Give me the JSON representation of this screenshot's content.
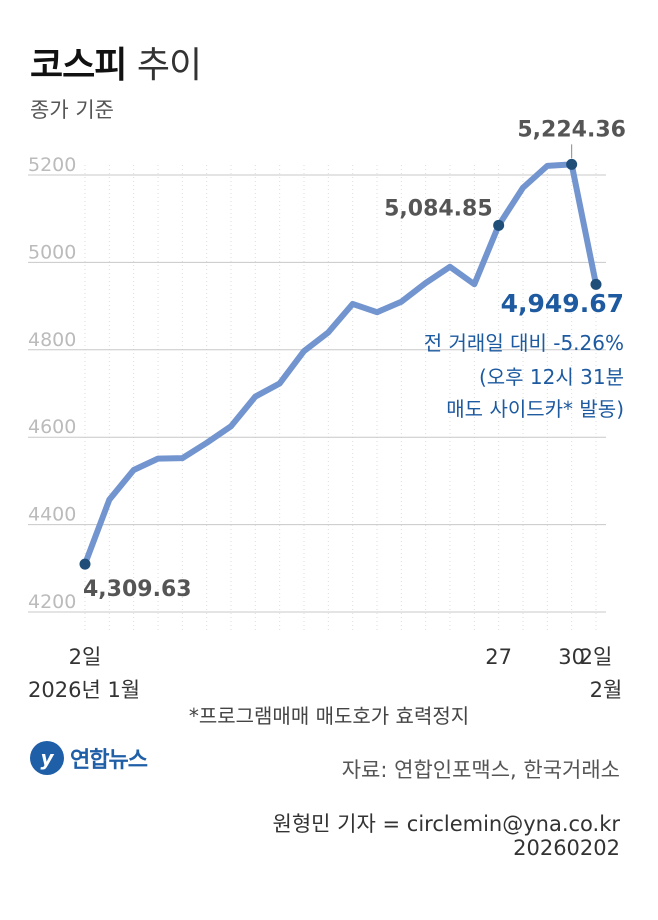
{
  "title_bold": "코스피",
  "title_light": "추이",
  "subtitle": "종가 기준",
  "note": "*프로그램매매 매도호가 효력정지",
  "logo": {
    "mark": "y",
    "name": "연합뉴스"
  },
  "source": "자료: 연합인포맥스, 한국거래소",
  "reporter": "원형민 기자 = circlemin@yna.co.kr",
  "date": "20260202",
  "colors": {
    "line": "#7294cf",
    "dot": "#1f4e79",
    "highlight": "#1e5aa0",
    "grid": "#c8c8c8",
    "label": "#555555"
  },
  "chart_data": {
    "type": "line",
    "ylim": [
      4150,
      5290
    ],
    "yticks": [
      4200,
      4400,
      4600,
      4800,
      5000,
      5200
    ],
    "x": [
      "1/2",
      "1/5",
      "1/6",
      "1/7",
      "1/8",
      "1/9",
      "1/12",
      "1/13",
      "1/14",
      "1/15",
      "1/16",
      "1/19",
      "1/20",
      "1/21",
      "1/22",
      "1/23",
      "1/26",
      "1/27",
      "1/28",
      "1/29",
      "1/30",
      "2/2"
    ],
    "values": [
      4309.63,
      4457,
      4525,
      4551,
      4552,
      4587,
      4625,
      4693,
      4723,
      4797,
      4840,
      4905,
      4886,
      4910,
      4953,
      4990,
      4950,
      5084.85,
      5171,
      5221,
      5224.36,
      4949.67
    ],
    "x_labels": [
      {
        "index": 0,
        "line1": "2일",
        "line2": "2026년 1월"
      },
      {
        "index": 17,
        "line1": "27",
        "line2": ""
      },
      {
        "index": 20,
        "line1": "30",
        "line2": ""
      },
      {
        "index": 21,
        "line1": "2일",
        "line2": "2월"
      }
    ],
    "annotations": [
      {
        "index": 0,
        "text": "4,309.63"
      },
      {
        "index": 17,
        "text": "5,084.85"
      },
      {
        "index": 20,
        "text": "5,224.36"
      }
    ],
    "last": {
      "index": 21,
      "value_text": "4,949.67",
      "change_text": "전 거래일 대비 -5.26%",
      "note_line1": "(오후 12시 31분",
      "note_line2": "매도 사이드카* 발동)"
    }
  }
}
